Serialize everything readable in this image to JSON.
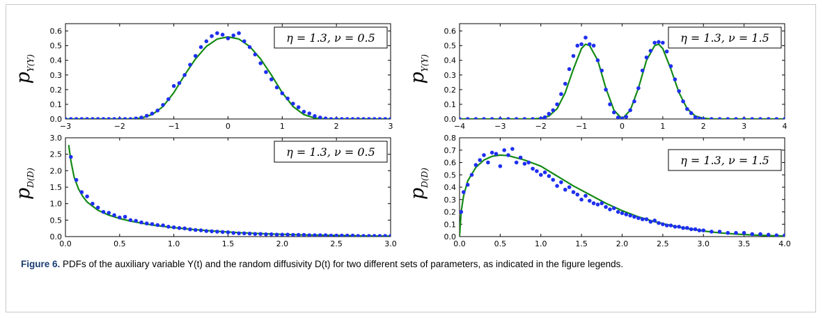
{
  "caption": {
    "label": "Figure 6.",
    "text": "PDFs of the auxiliary variable Y(t) and the random diffusivity D(t) for two different sets of parameters, as indicated in the figure legends."
  },
  "colors": {
    "points": "#1f2ff0",
    "curve": "#138a13"
  },
  "chart_data": [
    {
      "type": "scatter",
      "ylabel_main": "p",
      "ylabel_sub": "Y(Y)",
      "legend": "η = 1.3,  ν = 0.5",
      "xlim": [
        -3,
        3
      ],
      "ylim": [
        0,
        0.65
      ],
      "xticks": [
        -3,
        -2,
        -1,
        0,
        1,
        2,
        3
      ],
      "yticks": [
        0,
        0.1,
        0.2,
        0.3,
        0.4,
        0.5,
        0.6
      ],
      "xtick_labels": [
        "−3",
        "−2",
        "−1",
        "0",
        "1",
        "2",
        "3"
      ],
      "ytick_labels": [
        "0.0",
        "0.1",
        "0.2",
        "0.3",
        "0.4",
        "0.5",
        "0.6"
      ],
      "points": {
        "x": [
          -3,
          -2.9,
          -2.8,
          -2.7,
          -2.6,
          -2.5,
          -2.4,
          -2.3,
          -2.2,
          -2.1,
          -2.0,
          -1.9,
          -1.8,
          -1.7,
          -1.6,
          -1.5,
          -1.4,
          -1.3,
          -1.2,
          -1.1,
          -1.0,
          -0.9,
          -0.8,
          -0.7,
          -0.6,
          -0.5,
          -0.4,
          -0.3,
          -0.2,
          -0.1,
          0.0,
          0.1,
          0.2,
          0.3,
          0.4,
          0.5,
          0.6,
          0.7,
          0.8,
          0.9,
          1.0,
          1.1,
          1.2,
          1.3,
          1.4,
          1.5,
          1.6,
          1.7,
          1.8,
          1.9,
          2.0,
          2.1,
          2.2,
          2.3,
          2.4,
          2.5,
          2.6,
          2.7,
          2.8,
          2.9,
          3.0
        ],
        "y": [
          0,
          0,
          0,
          0,
          0,
          0,
          0,
          0,
          0,
          0,
          0,
          0,
          0,
          0.004,
          0.01,
          0.022,
          0.037,
          0.058,
          0.096,
          0.135,
          0.225,
          0.245,
          0.3,
          0.37,
          0.43,
          0.49,
          0.53,
          0.565,
          0.585,
          0.575,
          0.55,
          0.57,
          0.585,
          0.53,
          0.49,
          0.44,
          0.38,
          0.32,
          0.27,
          0.215,
          0.175,
          0.14,
          0.105,
          0.08,
          0.05,
          0.038,
          0.02,
          0.01,
          0.004,
          0,
          0,
          0,
          0,
          0,
          0,
          0,
          0,
          0,
          0,
          0,
          0
        ]
      },
      "curve": {
        "x": [
          -3,
          -1.8,
          -1.6,
          -1.4,
          -1.2,
          -1.0,
          -0.8,
          -0.6,
          -0.4,
          -0.2,
          0.0,
          0.2,
          0.4,
          0.6,
          0.8,
          1.0,
          1.2,
          1.4,
          1.6,
          1.8,
          3
        ],
        "y": [
          0,
          0,
          0.006,
          0.03,
          0.085,
          0.18,
          0.3,
          0.41,
          0.495,
          0.545,
          0.56,
          0.545,
          0.495,
          0.41,
          0.3,
          0.18,
          0.085,
          0.03,
          0.006,
          0,
          0
        ]
      }
    },
    {
      "type": "scatter",
      "ylabel_main": "p",
      "ylabel_sub": "Y(Y)",
      "legend": "η = 1.3,  ν = 1.5",
      "xlim": [
        -4,
        4
      ],
      "ylim": [
        0,
        0.65
      ],
      "xticks": [
        -4,
        -3,
        -2,
        -1,
        0,
        1,
        2,
        3,
        4
      ],
      "yticks": [
        0,
        0.1,
        0.2,
        0.3,
        0.4,
        0.5,
        0.6
      ],
      "xtick_labels": [
        "−4",
        "−3",
        "−2",
        "−1",
        "0",
        "1",
        "2",
        "3",
        "4"
      ],
      "ytick_labels": [
        "0.0",
        "0.1",
        "0.2",
        "0.3",
        "0.4",
        "0.5",
        "0.6"
      ],
      "points": {
        "x": [
          -4,
          -3.8,
          -3.6,
          -3.4,
          -3.2,
          -3.0,
          -2.8,
          -2.6,
          -2.4,
          -2.2,
          -2.0,
          -1.9,
          -1.8,
          -1.7,
          -1.6,
          -1.5,
          -1.4,
          -1.3,
          -1.2,
          -1.1,
          -1.0,
          -0.9,
          -0.8,
          -0.7,
          -0.6,
          -0.5,
          -0.4,
          -0.3,
          -0.2,
          -0.1,
          0.0,
          0.1,
          0.2,
          0.3,
          0.4,
          0.5,
          0.6,
          0.7,
          0.8,
          0.9,
          1.0,
          1.1,
          1.2,
          1.3,
          1.4,
          1.5,
          1.6,
          1.7,
          1.8,
          1.9,
          2.0,
          2.2,
          2.4,
          2.6,
          2.8,
          3.0,
          3.2,
          3.4,
          3.6,
          3.8,
          4.0
        ],
        "y": [
          0,
          0,
          0,
          0,
          0,
          0,
          0,
          0,
          0,
          0,
          0.003,
          0.012,
          0.035,
          0.06,
          0.1,
          0.17,
          0.24,
          0.34,
          0.43,
          0.5,
          0.51,
          0.555,
          0.51,
          0.5,
          0.4,
          0.33,
          0.2,
          0.1,
          0.045,
          0.01,
          0.003,
          0.015,
          0.06,
          0.12,
          0.21,
          0.33,
          0.42,
          0.465,
          0.52,
          0.525,
          0.52,
          0.46,
          0.36,
          0.27,
          0.19,
          0.12,
          0.068,
          0.04,
          0.012,
          0.003,
          0,
          0,
          0,
          0,
          0,
          0,
          0,
          0,
          0,
          0,
          0
        ]
      },
      "curve": {
        "x": [
          -4,
          -2.2,
          -2.0,
          -1.8,
          -1.6,
          -1.4,
          -1.2,
          -1.0,
          -0.9,
          -0.8,
          -0.6,
          -0.4,
          -0.2,
          0.0,
          0.2,
          0.4,
          0.6,
          0.8,
          0.9,
          1.0,
          1.2,
          1.4,
          1.6,
          1.8,
          2.0,
          2.2,
          4
        ],
        "y": [
          0,
          0,
          0.005,
          0.02,
          0.07,
          0.18,
          0.34,
          0.48,
          0.51,
          0.5,
          0.4,
          0.21,
          0.06,
          0,
          0.06,
          0.21,
          0.4,
          0.5,
          0.51,
          0.48,
          0.34,
          0.18,
          0.07,
          0.02,
          0.005,
          0,
          0
        ]
      }
    },
    {
      "type": "scatter",
      "ylabel_main": "p",
      "ylabel_sub": "D(D)",
      "legend": "η = 1.3,  ν = 0.5",
      "xlim": [
        0,
        3
      ],
      "ylim": [
        0,
        3.0
      ],
      "xticks": [
        0,
        0.5,
        1.0,
        1.5,
        2.0,
        2.5,
        3.0
      ],
      "yticks": [
        0,
        0.5,
        1.0,
        1.5,
        2.0,
        2.5,
        3.0
      ],
      "xtick_labels": [
        "0.0",
        "0.5",
        "1.0",
        "1.5",
        "2.0",
        "2.5",
        "3.0"
      ],
      "ytick_labels": [
        "0.0",
        "0.5",
        "1.0",
        "1.5",
        "2.0",
        "2.5",
        "3.0"
      ],
      "points": {
        "x": [
          0.05,
          0.1,
          0.15,
          0.2,
          0.25,
          0.3,
          0.35,
          0.4,
          0.45,
          0.5,
          0.55,
          0.6,
          0.65,
          0.7,
          0.75,
          0.8,
          0.85,
          0.9,
          0.95,
          1.0,
          1.05,
          1.1,
          1.15,
          1.2,
          1.25,
          1.3,
          1.35,
          1.4,
          1.45,
          1.5,
          1.55,
          1.6,
          1.65,
          1.7,
          1.75,
          1.8,
          1.85,
          1.9,
          1.95,
          2.0,
          2.05,
          2.1,
          2.15,
          2.2,
          2.25,
          2.3,
          2.35,
          2.4,
          2.45,
          2.5,
          2.55,
          2.6,
          2.65,
          2.7,
          2.75,
          2.8,
          2.85,
          2.9,
          2.95,
          3.0
        ],
        "y": [
          2.42,
          1.72,
          1.35,
          1.22,
          1.0,
          0.88,
          0.75,
          0.72,
          0.65,
          0.58,
          0.6,
          0.5,
          0.48,
          0.43,
          0.4,
          0.38,
          0.35,
          0.34,
          0.3,
          0.28,
          0.26,
          0.25,
          0.22,
          0.2,
          0.19,
          0.17,
          0.16,
          0.15,
          0.14,
          0.13,
          0.11,
          0.1,
          0.1,
          0.09,
          0.08,
          0.08,
          0.07,
          0.07,
          0.06,
          0.06,
          0.06,
          0.05,
          0.05,
          0.05,
          0.04,
          0.04,
          0.04,
          0.04,
          0.03,
          0.03,
          0.03,
          0.03,
          0.03,
          0.02,
          0.02,
          0.02,
          0.02,
          0.02,
          0.02,
          0.02
        ]
      },
      "curve": {
        "x": [
          0.03,
          0.05,
          0.08,
          0.12,
          0.16,
          0.2,
          0.3,
          0.4,
          0.5,
          0.6,
          0.8,
          1.0,
          1.2,
          1.4,
          1.6,
          1.8,
          2.0,
          2.2,
          2.4,
          2.6,
          2.8,
          3.0
        ],
        "y": [
          2.78,
          2.3,
          1.8,
          1.45,
          1.22,
          1.05,
          0.8,
          0.65,
          0.55,
          0.47,
          0.35,
          0.27,
          0.21,
          0.16,
          0.12,
          0.09,
          0.07,
          0.05,
          0.04,
          0.03,
          0.02,
          0.015
        ]
      }
    },
    {
      "type": "scatter",
      "ylabel_main": "p",
      "ylabel_sub": "D(D)",
      "legend": "η = 1.3,  ν = 1.5",
      "xlim": [
        0,
        4
      ],
      "ylim": [
        0,
        0.8
      ],
      "xticks": [
        0,
        0.5,
        1.0,
        1.5,
        2.0,
        2.5,
        3.0,
        3.5,
        4.0
      ],
      "yticks": [
        0,
        0.1,
        0.2,
        0.3,
        0.4,
        0.5,
        0.6,
        0.7,
        0.8
      ],
      "xtick_labels": [
        "0.0",
        "0.5",
        "1.0",
        "1.5",
        "2.0",
        "2.5",
        "3.0",
        "3.5",
        "4.0"
      ],
      "ytick_labels": [
        "0.0",
        "0.1",
        "0.2",
        "0.3",
        "0.4",
        "0.5",
        "0.6",
        "0.7",
        "0.8"
      ],
      "points": {
        "x": [
          0.02,
          0.05,
          0.1,
          0.15,
          0.2,
          0.25,
          0.3,
          0.35,
          0.4,
          0.45,
          0.5,
          0.55,
          0.6,
          0.65,
          0.7,
          0.75,
          0.8,
          0.85,
          0.9,
          0.95,
          1.0,
          1.05,
          1.1,
          1.15,
          1.2,
          1.25,
          1.3,
          1.35,
          1.4,
          1.45,
          1.5,
          1.55,
          1.6,
          1.65,
          1.7,
          1.75,
          1.8,
          1.85,
          1.9,
          1.95,
          2.0,
          2.05,
          2.1,
          2.15,
          2.2,
          2.25,
          2.3,
          2.35,
          2.4,
          2.45,
          2.5,
          2.55,
          2.6,
          2.65,
          2.7,
          2.75,
          2.8,
          2.85,
          2.9,
          2.95,
          3.0,
          3.1,
          3.2,
          3.3,
          3.4,
          3.5,
          3.6,
          3.7,
          3.8,
          3.9,
          4.0
        ],
        "y": [
          0.2,
          0.36,
          0.42,
          0.5,
          0.58,
          0.62,
          0.66,
          0.6,
          0.68,
          0.67,
          0.57,
          0.7,
          0.66,
          0.71,
          0.6,
          0.64,
          0.59,
          0.6,
          0.55,
          0.53,
          0.5,
          0.52,
          0.49,
          0.46,
          0.41,
          0.44,
          0.38,
          0.4,
          0.36,
          0.34,
          0.3,
          0.33,
          0.29,
          0.27,
          0.26,
          0.27,
          0.24,
          0.22,
          0.23,
          0.2,
          0.19,
          0.18,
          0.17,
          0.16,
          0.15,
          0.14,
          0.14,
          0.12,
          0.13,
          0.11,
          0.1,
          0.09,
          0.09,
          0.08,
          0.08,
          0.07,
          0.07,
          0.06,
          0.06,
          0.05,
          0.05,
          0.04,
          0.04,
          0.03,
          0.03,
          0.03,
          0.02,
          0.02,
          0.015,
          0.01,
          0.01
        ]
      },
      "curve": {
        "x": [
          0.0,
          0.02,
          0.05,
          0.1,
          0.2,
          0.3,
          0.4,
          0.5,
          0.6,
          0.8,
          1.0,
          1.2,
          1.4,
          1.6,
          1.8,
          2.0,
          2.2,
          2.4,
          2.6,
          2.8,
          3.0,
          3.2,
          3.4,
          3.6,
          3.8,
          4.0
        ],
        "y": [
          0.0,
          0.2,
          0.33,
          0.45,
          0.56,
          0.62,
          0.65,
          0.66,
          0.655,
          0.62,
          0.57,
          0.49,
          0.41,
          0.34,
          0.27,
          0.21,
          0.16,
          0.12,
          0.09,
          0.065,
          0.045,
          0.03,
          0.02,
          0.013,
          0.008,
          0.005
        ]
      }
    }
  ]
}
